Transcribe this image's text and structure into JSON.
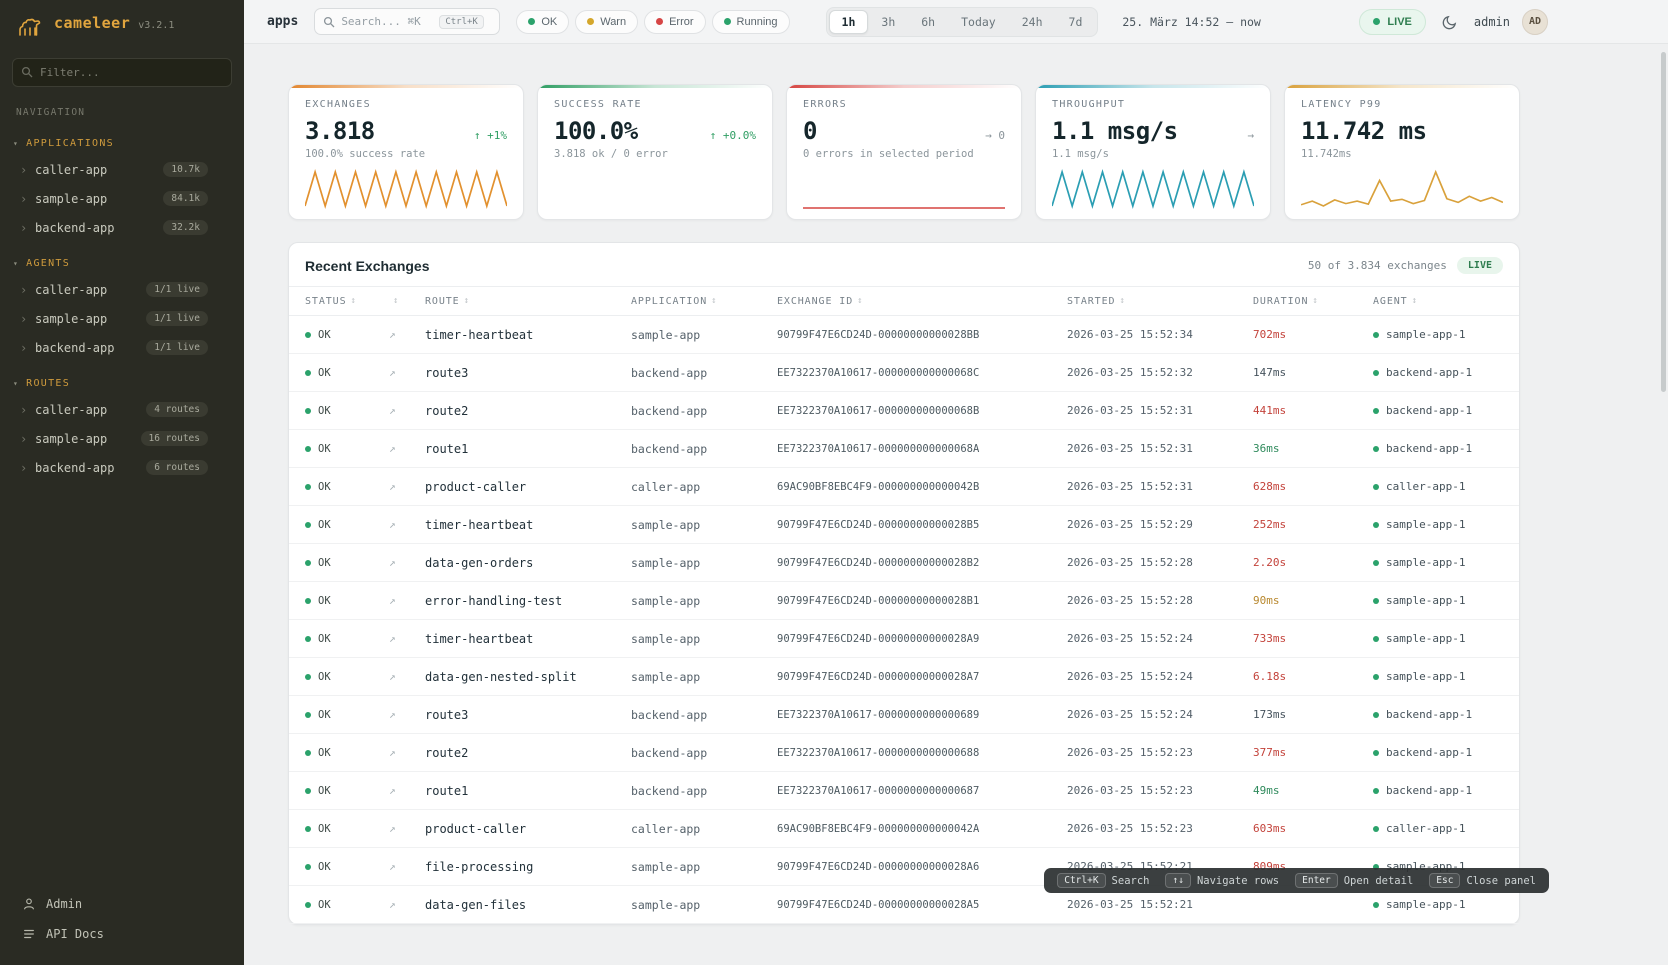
{
  "sidebar": {
    "logo": {
      "name": "cameleer",
      "version": "v3.2.1"
    },
    "filter_placeholder": "Filter...",
    "nav_label": "NAVIGATION",
    "sections": [
      {
        "label": "APPLICATIONS",
        "items": [
          {
            "label": "caller-app",
            "badge": "10.7k"
          },
          {
            "label": "sample-app",
            "badge": "84.1k"
          },
          {
            "label": "backend-app",
            "badge": "32.2k"
          }
        ]
      },
      {
        "label": "AGENTS",
        "items": [
          {
            "label": "caller-app",
            "badge": "1/1 live"
          },
          {
            "label": "sample-app",
            "badge": "1/1 live"
          },
          {
            "label": "backend-app",
            "badge": "1/1 live"
          }
        ]
      },
      {
        "label": "ROUTES",
        "items": [
          {
            "label": "caller-app",
            "badge": "4 routes"
          },
          {
            "label": "sample-app",
            "badge": "16 routes"
          },
          {
            "label": "backend-app",
            "badge": "6 routes"
          }
        ]
      }
    ],
    "footer": {
      "admin": "Admin",
      "api_docs": "API Docs"
    }
  },
  "topbar": {
    "breadcrumb": "apps",
    "search": {
      "placeholder": "Search... ⌘K",
      "kbd": "Ctrl+K"
    },
    "chips": [
      {
        "label": "OK",
        "color": "#2ba26b"
      },
      {
        "label": "Warn",
        "color": "#d4a72c"
      },
      {
        "label": "Error",
        "color": "#d64545"
      },
      {
        "label": "Running",
        "color": "#2ba26b"
      }
    ],
    "ranges": [
      {
        "label": "1h",
        "active": true
      },
      {
        "label": "3h",
        "active": false
      },
      {
        "label": "6h",
        "active": false
      },
      {
        "label": "Today",
        "active": false
      },
      {
        "label": "24h",
        "active": false
      },
      {
        "label": "7d",
        "active": false
      }
    ],
    "period": "25. März 14:52  —  now",
    "live_label": "LIVE",
    "user": "admin",
    "avatar": "AD"
  },
  "cards": [
    {
      "title": "EXCHANGES",
      "value": "3.818",
      "delta": "↑ +1%",
      "delta_tone": "up",
      "sub": "100.0% success rate",
      "accent": "#e2862f",
      "spark": {
        "color": "#e2912f",
        "flat": null,
        "values": [
          15,
          85,
          15,
          85,
          15,
          85,
          15,
          85,
          15,
          85,
          15,
          85,
          15,
          85,
          15,
          85,
          15,
          85,
          15,
          85,
          15
        ]
      }
    },
    {
      "title": "SUCCESS RATE",
      "value": "100.0%",
      "delta": "↑ +0.0%",
      "delta_tone": "up",
      "sub": "3.818 ok / 0 error",
      "accent": "#2f9e63",
      "spark": null
    },
    {
      "title": "ERRORS",
      "value": "0",
      "delta": "→ 0",
      "delta_tone": "neutral",
      "sub": "0 errors in selected period",
      "accent": "#d64541",
      "spark": {
        "color": "#d64541",
        "flat": "bottom",
        "values": [
          0,
          0,
          0,
          0,
          0,
          0,
          0,
          0
        ]
      }
    },
    {
      "title": "THROUGHPUT",
      "value": "1.1 msg/s",
      "delta": "→",
      "delta_tone": "neutral",
      "sub": "1.1 msg/s",
      "accent": "#2b9eb3",
      "spark": {
        "color": "#2b9eb3",
        "flat": null,
        "values": [
          15,
          85,
          15,
          85,
          15,
          85,
          15,
          85,
          15,
          85,
          15,
          85,
          15,
          85,
          15,
          85,
          15,
          85,
          15,
          85,
          15
        ]
      }
    },
    {
      "title": "LATENCY P99",
      "value": "11.742 ms",
      "delta": "",
      "delta_tone": "neutral",
      "sub": "11.742ms",
      "accent": "#d9a13b",
      "spark": {
        "color": "#d9a13b",
        "flat": null,
        "values": [
          18,
          24,
          16,
          26,
          20,
          24,
          19,
          58,
          24,
          27,
          20,
          25,
          72,
          28,
          22,
          32,
          24,
          30,
          22
        ]
      }
    }
  ],
  "table": {
    "title": "Recent Exchanges",
    "count": "50 of 3.834 exchanges",
    "live_label": "LIVE",
    "columns": [
      {
        "label": "STATUS"
      },
      {
        "label": ""
      },
      {
        "label": "ROUTE"
      },
      {
        "label": "APPLICATION"
      },
      {
        "label": "EXCHANGE ID"
      },
      {
        "label": "STARTED"
      },
      {
        "label": "DURATION"
      },
      {
        "label": "AGENT"
      }
    ],
    "rows": [
      {
        "status": "OK",
        "route": "timer-heartbeat",
        "application": "sample-app",
        "exchange_id": "90799F47E6CD24D-00000000000028BB",
        "started": "2026-03-25 15:52:34",
        "duration": "702ms",
        "tone": "red",
        "agent": "sample-app-1"
      },
      {
        "status": "OK",
        "route": "route3",
        "application": "backend-app",
        "exchange_id": "EE7322370A10617-000000000000068C",
        "started": "2026-03-25 15:52:32",
        "duration": "147ms",
        "tone": "plain",
        "agent": "backend-app-1"
      },
      {
        "status": "OK",
        "route": "route2",
        "application": "backend-app",
        "exchange_id": "EE7322370A10617-000000000000068B",
        "started": "2026-03-25 15:52:31",
        "duration": "441ms",
        "tone": "red",
        "agent": "backend-app-1"
      },
      {
        "status": "OK",
        "route": "route1",
        "application": "backend-app",
        "exchange_id": "EE7322370A10617-000000000000068A",
        "started": "2026-03-25 15:52:31",
        "duration": "36ms",
        "tone": "green",
        "agent": "backend-app-1"
      },
      {
        "status": "OK",
        "route": "product-caller",
        "application": "caller-app",
        "exchange_id": "69AC90BF8EBC4F9-000000000000042B",
        "started": "2026-03-25 15:52:31",
        "duration": "628ms",
        "tone": "red",
        "agent": "caller-app-1"
      },
      {
        "status": "OK",
        "route": "timer-heartbeat",
        "application": "sample-app",
        "exchange_id": "90799F47E6CD24D-00000000000028B5",
        "started": "2026-03-25 15:52:29",
        "duration": "252ms",
        "tone": "red",
        "agent": "sample-app-1"
      },
      {
        "status": "OK",
        "route": "data-gen-orders",
        "application": "sample-app",
        "exchange_id": "90799F47E6CD24D-00000000000028B2",
        "started": "2026-03-25 15:52:28",
        "duration": "2.20s",
        "tone": "red",
        "agent": "sample-app-1"
      },
      {
        "status": "OK",
        "route": "error-handling-test",
        "application": "sample-app",
        "exchange_id": "90799F47E6CD24D-00000000000028B1",
        "started": "2026-03-25 15:52:28",
        "duration": "90ms",
        "tone": "amber",
        "agent": "sample-app-1"
      },
      {
        "status": "OK",
        "route": "timer-heartbeat",
        "application": "sample-app",
        "exchange_id": "90799F47E6CD24D-00000000000028A9",
        "started": "2026-03-25 15:52:24",
        "duration": "733ms",
        "tone": "red",
        "agent": "sample-app-1"
      },
      {
        "status": "OK",
        "route": "data-gen-nested-split",
        "application": "sample-app",
        "exchange_id": "90799F47E6CD24D-00000000000028A7",
        "started": "2026-03-25 15:52:24",
        "duration": "6.18s",
        "tone": "red",
        "agent": "sample-app-1"
      },
      {
        "status": "OK",
        "route": "route3",
        "application": "backend-app",
        "exchange_id": "EE7322370A10617-0000000000000689",
        "started": "2026-03-25 15:52:24",
        "duration": "173ms",
        "tone": "plain",
        "agent": "backend-app-1"
      },
      {
        "status": "OK",
        "route": "route2",
        "application": "backend-app",
        "exchange_id": "EE7322370A10617-0000000000000688",
        "started": "2026-03-25 15:52:23",
        "duration": "377ms",
        "tone": "red",
        "agent": "backend-app-1"
      },
      {
        "status": "OK",
        "route": "route1",
        "application": "backend-app",
        "exchange_id": "EE7322370A10617-0000000000000687",
        "started": "2026-03-25 15:52:23",
        "duration": "49ms",
        "tone": "green",
        "agent": "backend-app-1"
      },
      {
        "status": "OK",
        "route": "product-caller",
        "application": "caller-app",
        "exchange_id": "69AC90BF8EBC4F9-000000000000042A",
        "started": "2026-03-25 15:52:23",
        "duration": "603ms",
        "tone": "red",
        "agent": "caller-app-1"
      },
      {
        "status": "OK",
        "route": "file-processing",
        "application": "sample-app",
        "exchange_id": "90799F47E6CD24D-00000000000028A6",
        "started": "2026-03-25 15:52:21",
        "duration": "809ms",
        "tone": "red",
        "agent": "sample-app-1"
      },
      {
        "status": "OK",
        "route": "data-gen-files",
        "application": "sample-app",
        "exchange_id": "90799F47E6CD24D-00000000000028A5",
        "started": "2026-03-25 15:52:21",
        "duration": "",
        "tone": "plain",
        "agent": "sample-app-1"
      }
    ]
  },
  "hints": [
    {
      "key": "Ctrl+K",
      "label": "Search"
    },
    {
      "key": "↑↓",
      "label": "Navigate rows"
    },
    {
      "key": "Enter",
      "label": "Open detail"
    },
    {
      "key": "Esc",
      "label": "Close panel"
    }
  ],
  "colors": {
    "brand": "#e1a53e",
    "status_ok": "#2ba26b",
    "status_warn": "#d4a72c",
    "status_error": "#d64545",
    "duration_red": "#c3423a",
    "duration_amber": "#b8882e",
    "duration_green": "#2f8a5c",
    "live_green": "#2f7d4f"
  }
}
